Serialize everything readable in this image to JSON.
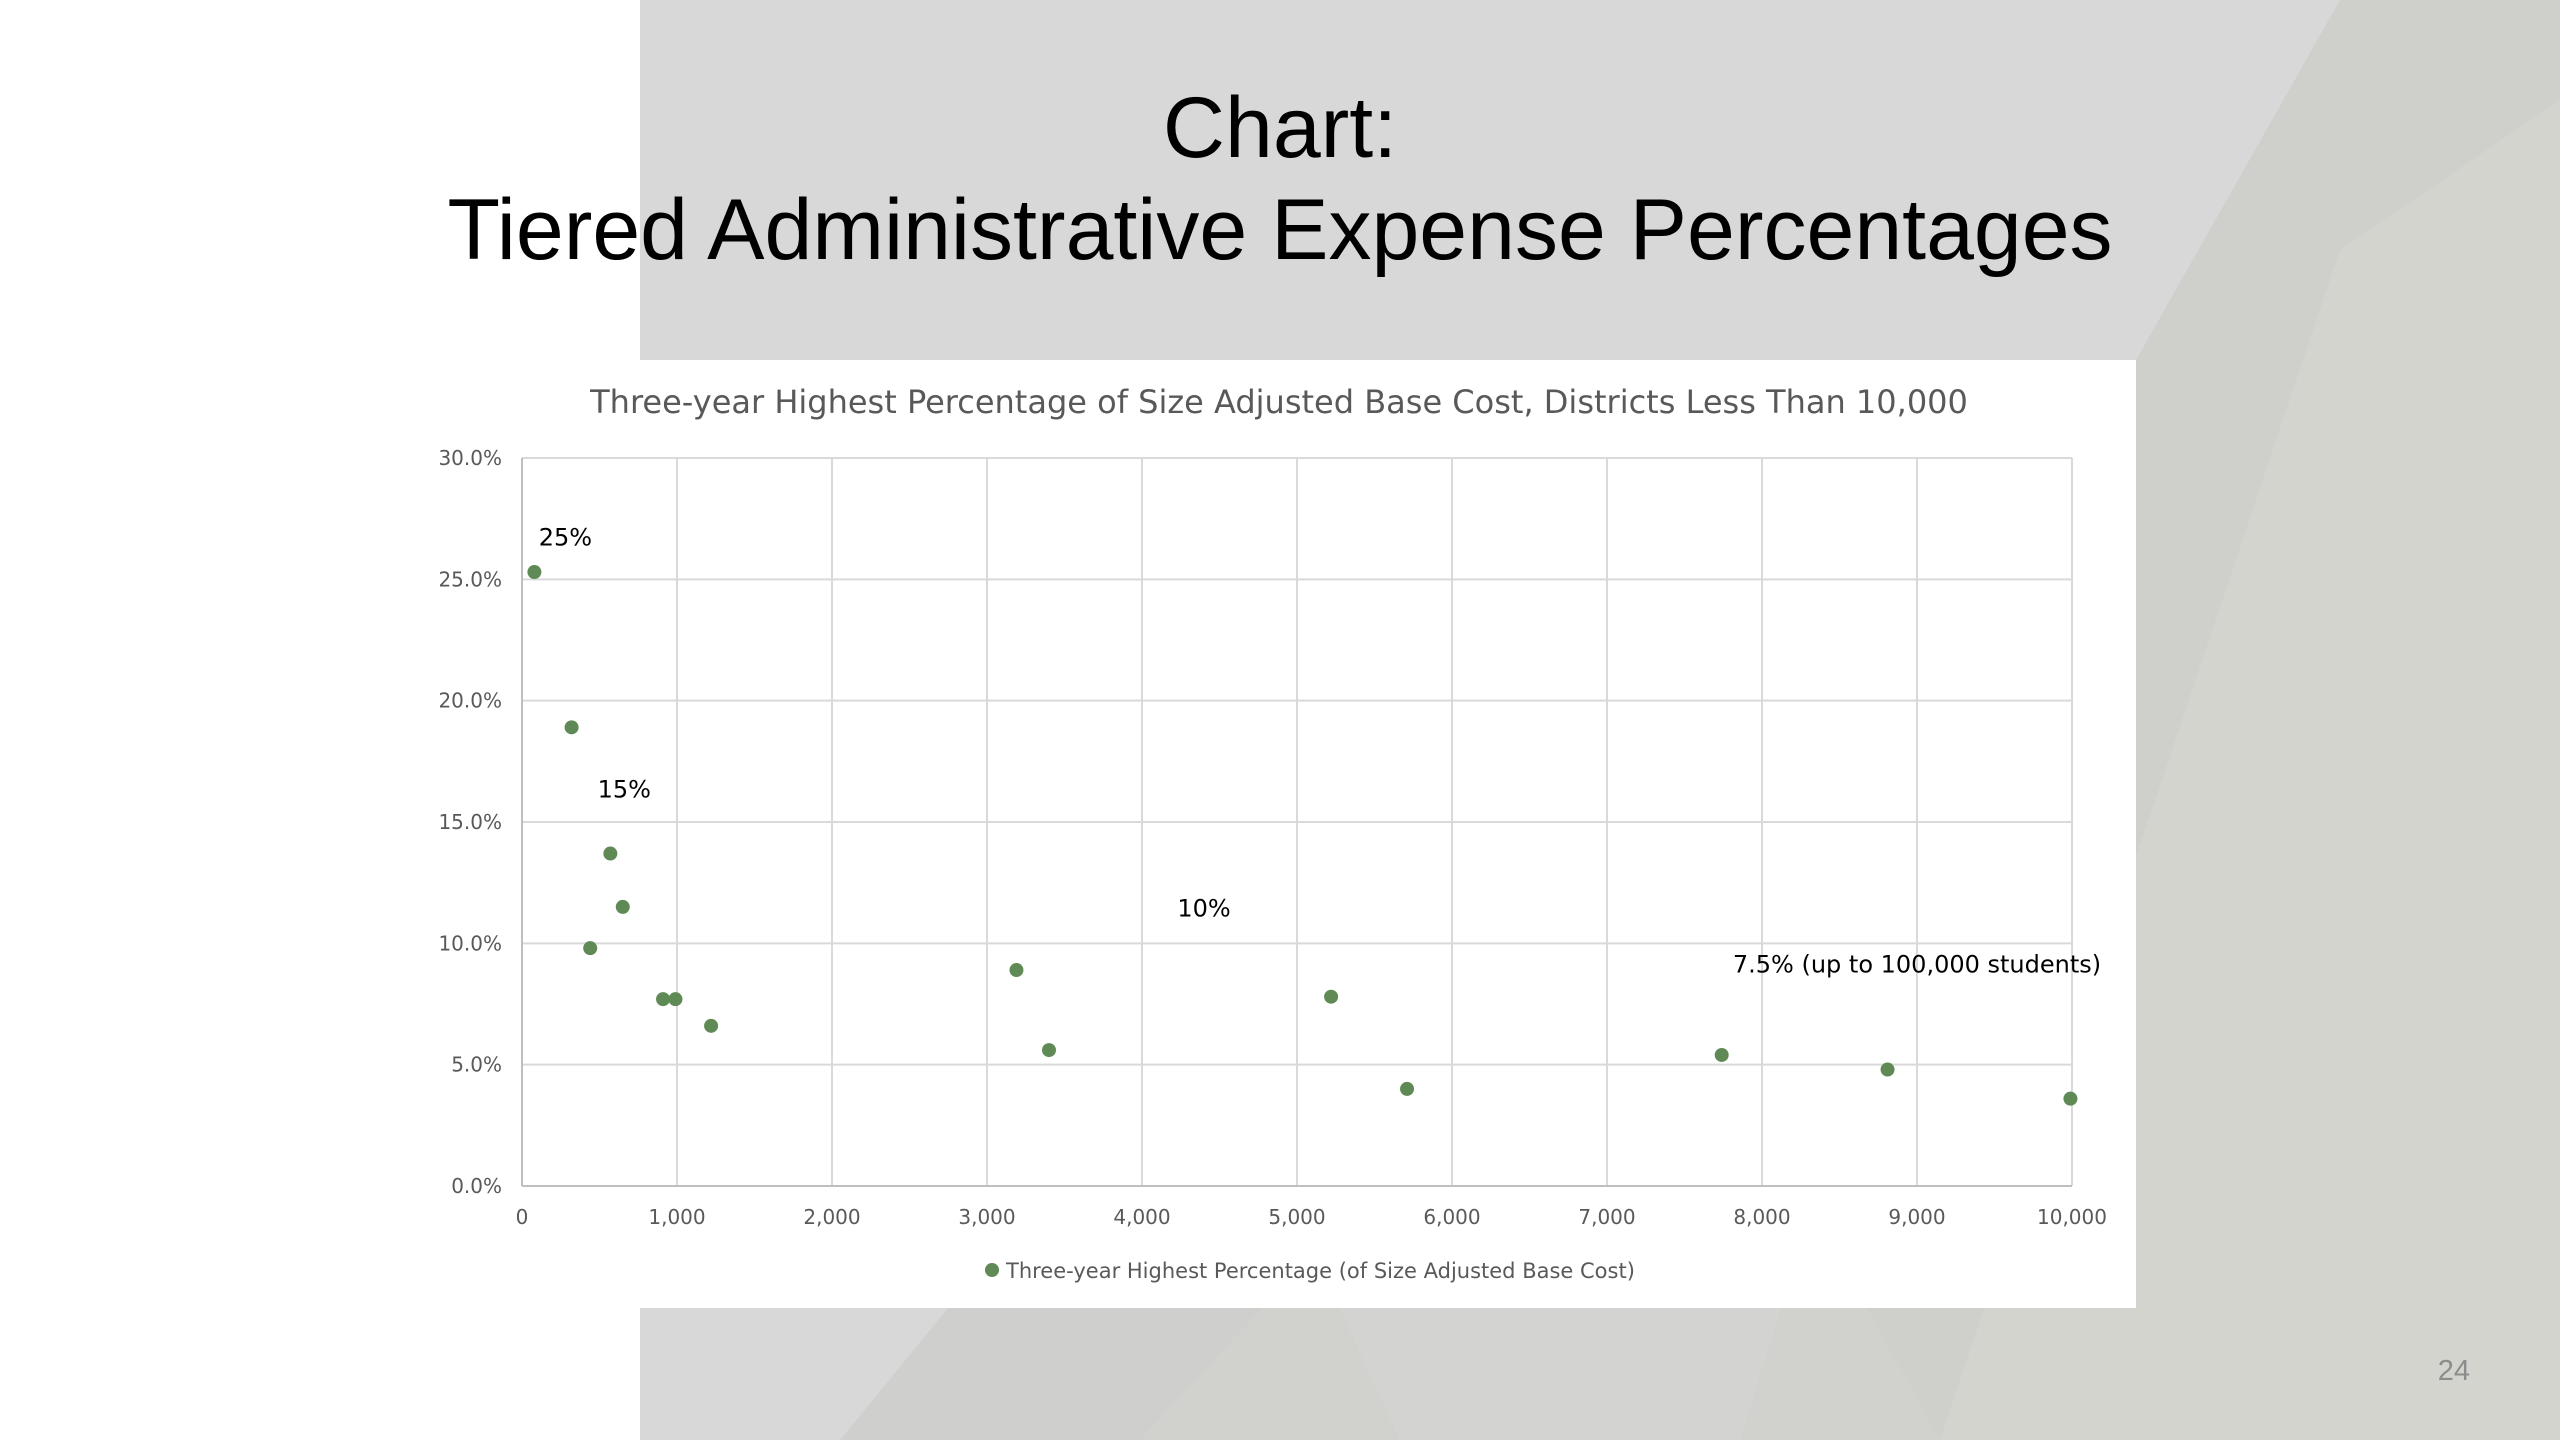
{
  "slide": {
    "title_line1": "Chart:",
    "title_line2": "Tiered Administrative Expense Percentages",
    "page_number": "24"
  },
  "colors": {
    "marker": "#5f8a55",
    "grid": "#d9d9d9",
    "axis_text": "#595959",
    "background_panel": "#d8d8d8"
  },
  "chart_data": {
    "type": "scatter",
    "title": "Three-year Highest Percentage of Size Adjusted Base Cost, Districts Less Than 10,000",
    "xlabel": "",
    "ylabel": "",
    "xlim": [
      0,
      10000
    ],
    "ylim": [
      0,
      30
    ],
    "x_ticks": [
      0,
      1000,
      2000,
      3000,
      4000,
      5000,
      6000,
      7000,
      8000,
      9000,
      10000
    ],
    "x_tick_labels": [
      "0",
      "1,000",
      "2,000",
      "3,000",
      "4,000",
      "5,000",
      "6,000",
      "7,000",
      "8,000",
      "9,000",
      "10,000"
    ],
    "y_ticks": [
      0,
      5,
      10,
      15,
      20,
      25,
      30
    ],
    "y_tick_labels": [
      "0.0%",
      "5.0%",
      "10.0%",
      "15.0%",
      "20.0%",
      "25.0%",
      "30.0%"
    ],
    "grid": true,
    "legend": "bottom",
    "series": [
      {
        "name": "Three-year Highest Percentage (of Size Adjusted Base Cost)",
        "points": [
          {
            "x": 80,
            "y": 25.3
          },
          {
            "x": 320,
            "y": 18.9
          },
          {
            "x": 440,
            "y": 9.8
          },
          {
            "x": 570,
            "y": 13.7
          },
          {
            "x": 650,
            "y": 11.5
          },
          {
            "x": 910,
            "y": 7.7
          },
          {
            "x": 990,
            "y": 7.7
          },
          {
            "x": 1220,
            "y": 6.6
          },
          {
            "x": 3190,
            "y": 8.9
          },
          {
            "x": 3400,
            "y": 5.6
          },
          {
            "x": 5220,
            "y": 7.8
          },
          {
            "x": 5710,
            "y": 4.0
          },
          {
            "x": 7740,
            "y": 5.4
          },
          {
            "x": 8810,
            "y": 4.8
          },
          {
            "x": 9990,
            "y": 3.6
          }
        ]
      }
    ],
    "annotations": [
      {
        "text": "25%",
        "x": 280,
        "y": 26.4
      },
      {
        "text": "15%",
        "x": 660,
        "y": 16.0
      },
      {
        "text": "10%",
        "x": 4400,
        "y": 11.1
      },
      {
        "text": "7.5% (up to 100,000 students)",
        "x": 9000,
        "y": 8.8
      }
    ]
  }
}
